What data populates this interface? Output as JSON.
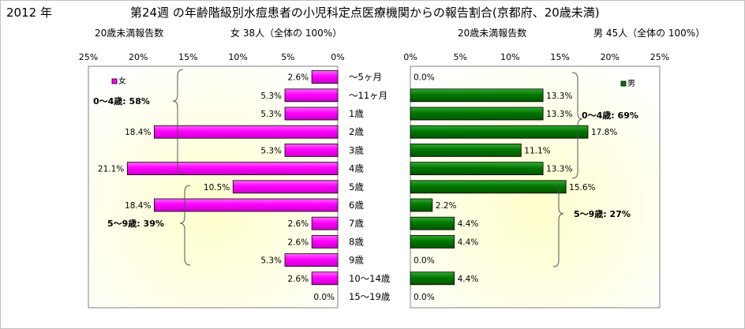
{
  "header": {
    "year": "2012 年",
    "title": "第24週 の年齢階級別水痘患者の小児科定点医療機関からの報告割合(京都府、20歳未満)"
  },
  "chart_data": {
    "type": "bar",
    "orientation": "horizontal-diverging",
    "categories": [
      "～5ヶ月",
      "～11ヶ月",
      "1歳",
      "2歳",
      "3歳",
      "4歳",
      "5歳",
      "6歳",
      "7歳",
      "8歳",
      "9歳",
      "10～14歳",
      "15～19歳"
    ],
    "female": {
      "subtitle_left": "20歳未満報告数",
      "subtitle_right": "女 38人（全体の 100%）",
      "legend": "女",
      "color": "#ff00ff",
      "xlim": [
        25,
        0
      ],
      "ticks": [
        "25%",
        "20%",
        "15%",
        "10%",
        "5%",
        "0%"
      ],
      "values": [
        2.6,
        5.3,
        5.3,
        18.4,
        5.3,
        21.1,
        10.5,
        18.4,
        2.6,
        2.6,
        5.3,
        2.6,
        0.0
      ],
      "labels": [
        "2.6%",
        "5.3%",
        "5.3%",
        "18.4%",
        "5.3%",
        "21.1%",
        "10.5%",
        "18.4%",
        "2.6%",
        "2.6%",
        "5.3%",
        "2.6%",
        "0.0%"
      ],
      "brace_0_4": "0～4歳: 58%",
      "brace_5_9": "5～9歳: 39%"
    },
    "male": {
      "subtitle_left": "20歳未満報告数",
      "subtitle_right": "男 45人（全体の 100%）",
      "legend": "男",
      "color": "#007700",
      "xlim": [
        0,
        25
      ],
      "ticks": [
        "0%",
        "5%",
        "10%",
        "15%",
        "20%",
        "25%"
      ],
      "values": [
        0.0,
        13.3,
        13.3,
        17.8,
        11.1,
        13.3,
        15.6,
        2.2,
        4.4,
        4.4,
        0.0,
        4.4,
        0.0
      ],
      "labels": [
        "0.0%",
        "13.3%",
        "13.3%",
        "17.8%",
        "11.1%",
        "13.3%",
        "15.6%",
        "2.2%",
        "4.4%",
        "4.4%",
        "0.0%",
        "4.4%",
        "0.0%"
      ],
      "brace_0_4": "0～4歳: 69%",
      "brace_5_9": "5～9歳: 27%"
    }
  }
}
